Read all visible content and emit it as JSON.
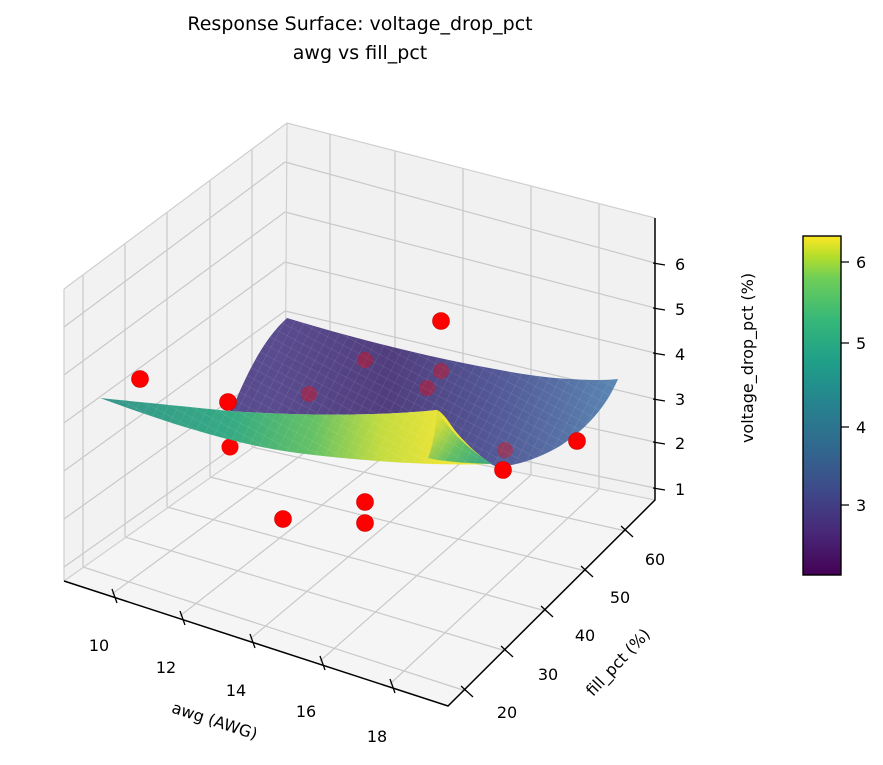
{
  "title": {
    "line1": "Response Surface: voltage_drop_pct",
    "line2": "awg vs fill_pct"
  },
  "axes": {
    "x": {
      "label": "awg (AWG)",
      "ticks": [
        "10",
        "12",
        "14",
        "16",
        "18"
      ]
    },
    "y": {
      "label": "fill_pct (%)",
      "ticks": [
        "20",
        "30",
        "40",
        "50",
        "60"
      ]
    },
    "z": {
      "label": "voltage_drop_pct (%)",
      "ticks": [
        "1",
        "2",
        "3",
        "4",
        "5",
        "6"
      ]
    }
  },
  "colorbar": {
    "ticks": [
      "3",
      "4",
      "5",
      "6"
    ],
    "colormap": "viridis",
    "vmin": 2.1,
    "vmax": 6.3
  },
  "colors": {
    "scatter": "#ff0000",
    "pane": "#f2f2f2",
    "floor": "#f5f5f5",
    "grid": "#c9c9c9",
    "spine": "#000000",
    "viridis_stops": [
      "#440154",
      "#482878",
      "#3e4a89",
      "#31688e",
      "#26828e",
      "#1f9e89",
      "#35b779",
      "#6ece58",
      "#b5de2b",
      "#fde725"
    ]
  },
  "chart_data": {
    "type": "3d-surface-with-scatter",
    "response": "voltage_drop_pct (%)",
    "factors": {
      "x": "awg (AWG)",
      "y": "fill_pct (%)"
    },
    "x_range": [
      10,
      18
    ],
    "y_range": [
      20,
      60
    ],
    "z_range": [
      1,
      6
    ],
    "surface": {
      "colormap": "viridis",
      "color_value_range": [
        2.1,
        6.3
      ],
      "shape": "curved valley: high ridge (~6.3) along the low-fill front edge near awg 14-15, teal (~4.2) at awg 10 / fill 20, purple valley (~2.2) around awg 12-15 with fill 40-55, rising to slate blue (~3.4) at awg 18 / fill 60"
    },
    "points": [
      {
        "awg": 10.3,
        "fill_pct": 30,
        "voltage_drop_pct": 3.7,
        "layer": "front",
        "px": [
          140,
          379
        ]
      },
      {
        "awg": 11.8,
        "fill_pct": 31,
        "voltage_drop_pct": 3.2,
        "layer": "front",
        "px": [
          228,
          402
        ]
      },
      {
        "awg": 11.9,
        "fill_pct": 30,
        "voltage_drop_pct": 2.8,
        "layer": "behind",
        "px": [
          230,
          447
        ]
      },
      {
        "awg": 13.0,
        "fill_pct": 27,
        "voltage_drop_pct": 1.7,
        "layer": "front",
        "px": [
          283,
          519
        ]
      },
      {
        "awg": 14.2,
        "fill_pct": 30,
        "voltage_drop_pct": 2.0,
        "layer": "front",
        "px": [
          365,
          502
        ]
      },
      {
        "awg": 14.4,
        "fill_pct": 28,
        "voltage_drop_pct": 1.6,
        "layer": "front",
        "px": [
          365,
          523
        ]
      },
      {
        "awg": 14.0,
        "fill_pct": 46,
        "voltage_drop_pct": 4.9,
        "layer": "front",
        "px": [
          441,
          321
        ]
      },
      {
        "awg": 16.6,
        "fill_pct": 41,
        "voltage_drop_pct": 2.1,
        "layer": "front",
        "px": [
          503,
          470
        ]
      },
      {
        "awg": 17.4,
        "fill_pct": 51,
        "voltage_drop_pct": 2.7,
        "layer": "front",
        "px": [
          577,
          441
        ]
      },
      {
        "awg": 12.6,
        "fill_pct": 38,
        "voltage_drop_pct": 3.0,
        "layer": "dim",
        "px": [
          309,
          394
        ]
      },
      {
        "awg": 13.1,
        "fill_pct": 45,
        "voltage_drop_pct": 3.5,
        "layer": "dim",
        "px": [
          365,
          360
        ]
      },
      {
        "awg": 14.6,
        "fill_pct": 43,
        "voltage_drop_pct": 3.0,
        "layer": "dim",
        "px": [
          427,
          388
        ]
      },
      {
        "awg": 14.6,
        "fill_pct": 48,
        "voltage_drop_pct": 3.3,
        "layer": "dim",
        "px": [
          441,
          371
        ]
      },
      {
        "awg": 16.4,
        "fill_pct": 45,
        "voltage_drop_pct": 2.4,
        "layer": "dim",
        "px": [
          505,
          450
        ]
      }
    ]
  }
}
